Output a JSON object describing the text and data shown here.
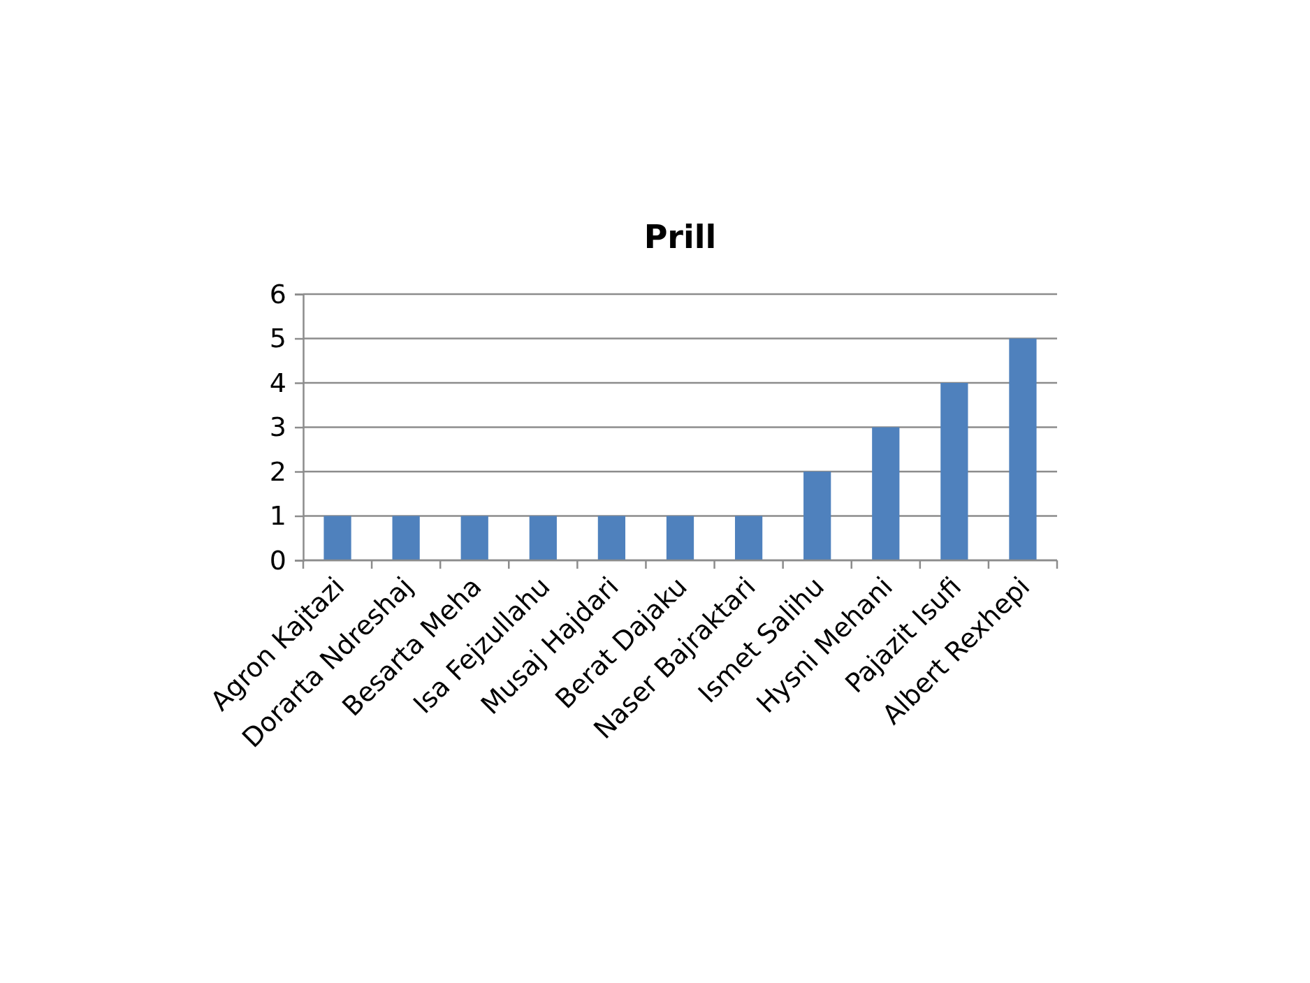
{
  "chart_data": {
    "type": "bar",
    "title": "Prill",
    "categories": [
      "Agron Kajtazi",
      "Dorarta Ndreshaj",
      "Besarta Meha",
      "Isa Fejzullahu",
      "Musaj Hajdari",
      "Berat Dajaku",
      "Naser Bajraktari",
      "Ismet Salihu",
      "Hysni Mehani",
      "Pajazit Isufi",
      "Albert Rexhepi"
    ],
    "values": [
      1,
      1,
      1,
      1,
      1,
      1,
      1,
      2,
      3,
      4,
      5
    ],
    "color": "#4f81bd",
    "ylim": [
      0,
      6
    ],
    "yticks": [
      0,
      1,
      2,
      3,
      4,
      5,
      6
    ],
    "grid": "y"
  }
}
